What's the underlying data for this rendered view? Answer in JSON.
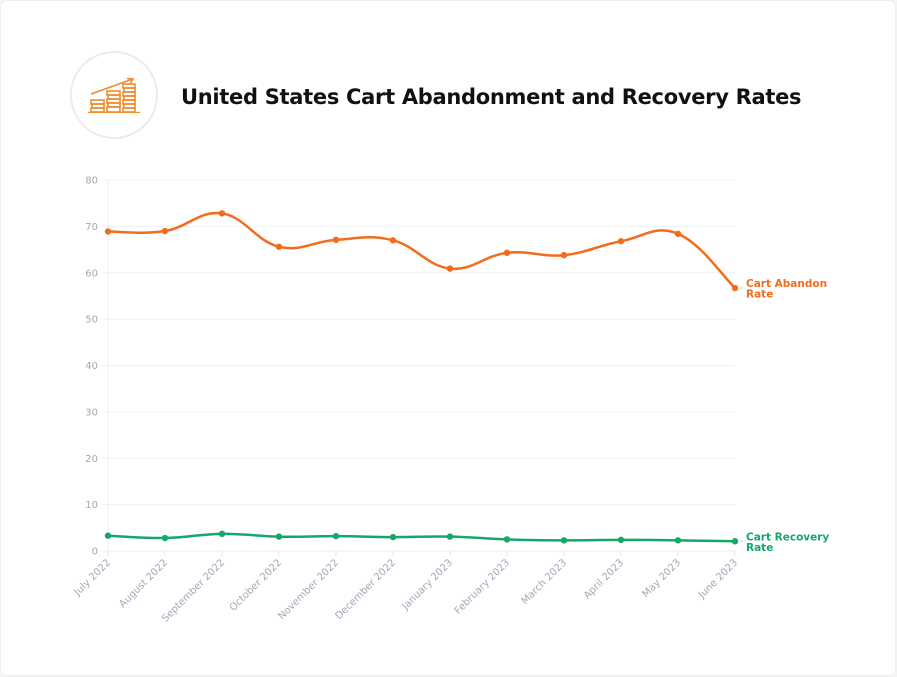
{
  "header": {
    "title": "United States Cart Abandonment and Recovery Rates",
    "logo_icon": "rising-coins-chart-icon"
  },
  "chart_data": {
    "type": "line",
    "title": "United States Cart Abandonment and Recovery Rates",
    "xlabel": "",
    "ylabel": "",
    "ylim": [
      0,
      80
    ],
    "yticks": [
      0,
      10,
      20,
      30,
      40,
      50,
      60,
      70,
      80
    ],
    "grid": true,
    "legend": "inline-right-end",
    "categories": [
      "July 2022",
      "August 2022",
      "September 2022",
      "October 2022",
      "November 2022",
      "December 2022",
      "January 2023",
      "February 2023",
      "March 2023",
      "April 2023",
      "May 2023",
      "June 2023"
    ],
    "series": [
      {
        "name": "Cart Abandon Rate",
        "label_lines": [
          "Cart Abandon",
          "Rate"
        ],
        "color": "#f36c1c",
        "values": [
          68.9,
          69.0,
          72.8,
          65.6,
          67.1,
          67.0,
          60.9,
          64.3,
          63.8,
          66.8,
          68.4,
          56.7
        ]
      },
      {
        "name": "Cart Recovery Rate",
        "label_lines": [
          "Cart Recovery",
          "Rate"
        ],
        "color": "#13a86a",
        "values": [
          3.3,
          2.8,
          3.7,
          3.1,
          3.2,
          3.0,
          3.1,
          2.5,
          2.3,
          2.4,
          2.3,
          2.1
        ]
      }
    ]
  }
}
